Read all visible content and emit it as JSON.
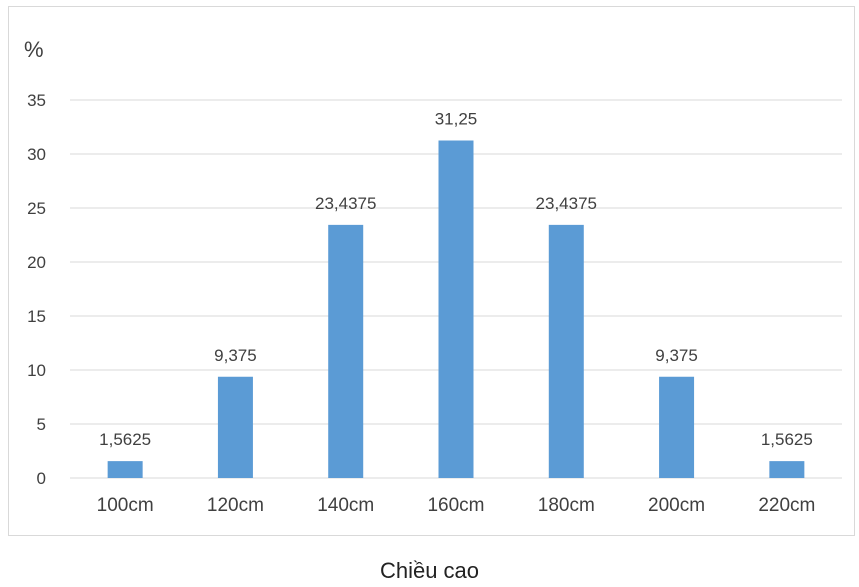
{
  "chart_data": {
    "type": "bar",
    "title": "",
    "ylabel": "%",
    "xlabel": "Chiều cao",
    "categories": [
      "100cm",
      "120cm",
      "140cm",
      "160cm",
      "180cm",
      "200cm",
      "220cm"
    ],
    "series": [
      {
        "values": [
          1.5625,
          9.375,
          23.4375,
          31.25,
          23.4375,
          9.375,
          1.5625
        ]
      }
    ],
    "data_labels": [
      "1,5625",
      "9,375",
      "23,4375",
      "31,25",
      "23,4375",
      "9,375",
      "1,5625"
    ],
    "y_ticks": [
      "0",
      "5",
      "10",
      "15",
      "20",
      "25",
      "30",
      "35"
    ],
    "ylim": [
      0,
      35
    ],
    "grid": true,
    "legend": "none",
    "bar_color": "#5b9bd5",
    "grid_color": "#d9d9d9"
  }
}
